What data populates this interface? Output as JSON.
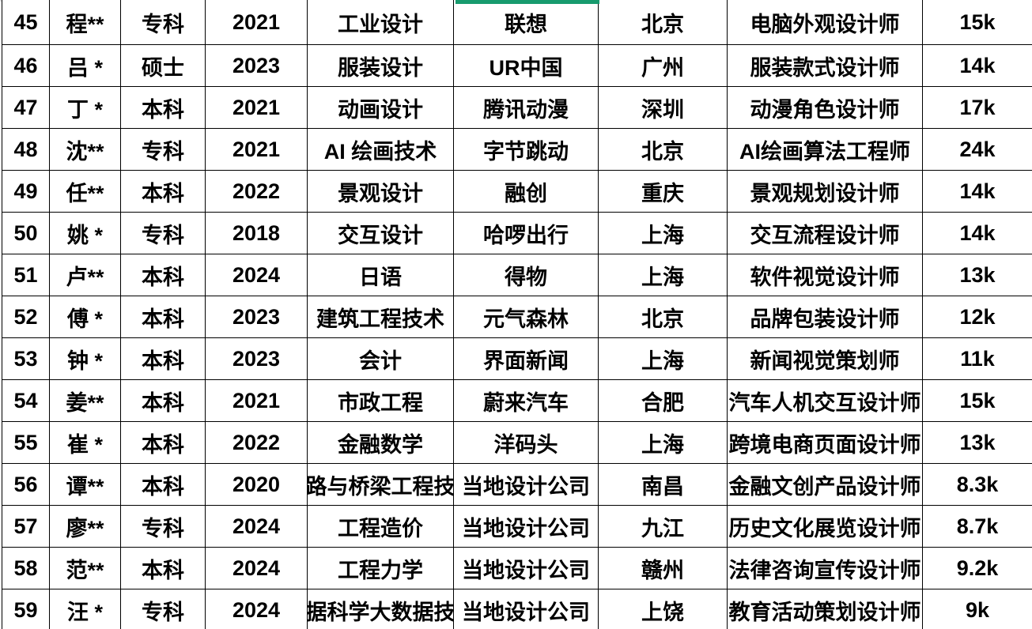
{
  "app": {
    "kind": "spreadsheet-table-view"
  },
  "colors": {
    "selection_green": "#189B6E",
    "grid": "#000000",
    "top_hairline": "#DCDCDC",
    "background": "#FFFFFF",
    "text": "#000000"
  },
  "selection": {
    "indicator": "green-top-border-on-employer-column",
    "color": "#189B6E"
  },
  "table": {
    "columns": [
      {
        "key": "index"
      },
      {
        "key": "name"
      },
      {
        "key": "education"
      },
      {
        "key": "year"
      },
      {
        "key": "major"
      },
      {
        "key": "employer"
      },
      {
        "key": "city"
      },
      {
        "key": "job_title"
      },
      {
        "key": "salary"
      }
    ],
    "rows": [
      {
        "cells": [
          "45",
          "程**",
          "专科",
          "2021",
          "工业设计",
          "联想",
          "北京",
          "电脑外观设计师",
          "15k"
        ]
      },
      {
        "cells": [
          "46",
          "吕 *",
          "硕士",
          "2023",
          "服装设计",
          "UR中国",
          "广州",
          "服装款式设计师",
          "14k"
        ]
      },
      {
        "cells": [
          "47",
          "丁 *",
          "本科",
          "2021",
          "动画设计",
          "腾讯动漫",
          "深圳",
          "动漫角色设计师",
          "17k"
        ]
      },
      {
        "cells": [
          "48",
          "沈**",
          "专科",
          "2021",
          "AI 绘画技术",
          "字节跳动",
          "北京",
          "AI绘画算法工程师",
          "24k"
        ]
      },
      {
        "cells": [
          "49",
          "任**",
          "本科",
          "2022",
          "景观设计",
          "融创",
          "重庆",
          "景观规划设计师",
          "14k"
        ]
      },
      {
        "cells": [
          "50",
          "姚 *",
          "专科",
          "2018",
          "交互设计",
          "哈啰出行",
          "上海",
          "交互流程设计师",
          "14k"
        ]
      },
      {
        "cells": [
          "51",
          "卢**",
          "本科",
          "2024",
          "日语",
          "得物",
          "上海",
          "软件视觉设计师",
          "13k"
        ]
      },
      {
        "cells": [
          "52",
          "傅 *",
          "本科",
          "2023",
          "建筑工程技术",
          "元气森林",
          "北京",
          "品牌包装设计师",
          "12k"
        ]
      },
      {
        "cells": [
          "53",
          "钟 *",
          "本科",
          "2023",
          "会计",
          "界面新闻",
          "上海",
          "新闻视觉策划师",
          "11k"
        ]
      },
      {
        "cells": [
          "54",
          "姜**",
          "本科",
          "2021",
          "市政工程",
          "蔚来汽车",
          "合肥",
          "汽车人机交互设计师",
          "15k"
        ]
      },
      {
        "cells": [
          "55",
          "崔 *",
          "本科",
          "2022",
          "金融数学",
          "洋码头",
          "上海",
          "跨境电商页面设计师",
          "13k"
        ]
      },
      {
        "cells": [
          "56",
          "谭**",
          "本科",
          "2020",
          "路与桥梁工程技",
          "当地设计公司",
          "南昌",
          "金融文创产品设计师",
          "8.3k"
        ]
      },
      {
        "cells": [
          "57",
          "廖**",
          "专科",
          "2024",
          "工程造价",
          "当地设计公司",
          "九江",
          "历史文化展览设计师",
          "8.7k"
        ]
      },
      {
        "cells": [
          "58",
          "范**",
          "本科",
          "2024",
          "工程力学",
          "当地设计公司",
          "赣州",
          "法律咨询宣传设计师",
          "9.2k"
        ]
      },
      {
        "cells": [
          "59",
          "汪 *",
          "专科",
          "2024",
          "据科学大数据技",
          "当地设计公司",
          "上饶",
          "教育活动策划设计师",
          "9k"
        ]
      }
    ]
  }
}
